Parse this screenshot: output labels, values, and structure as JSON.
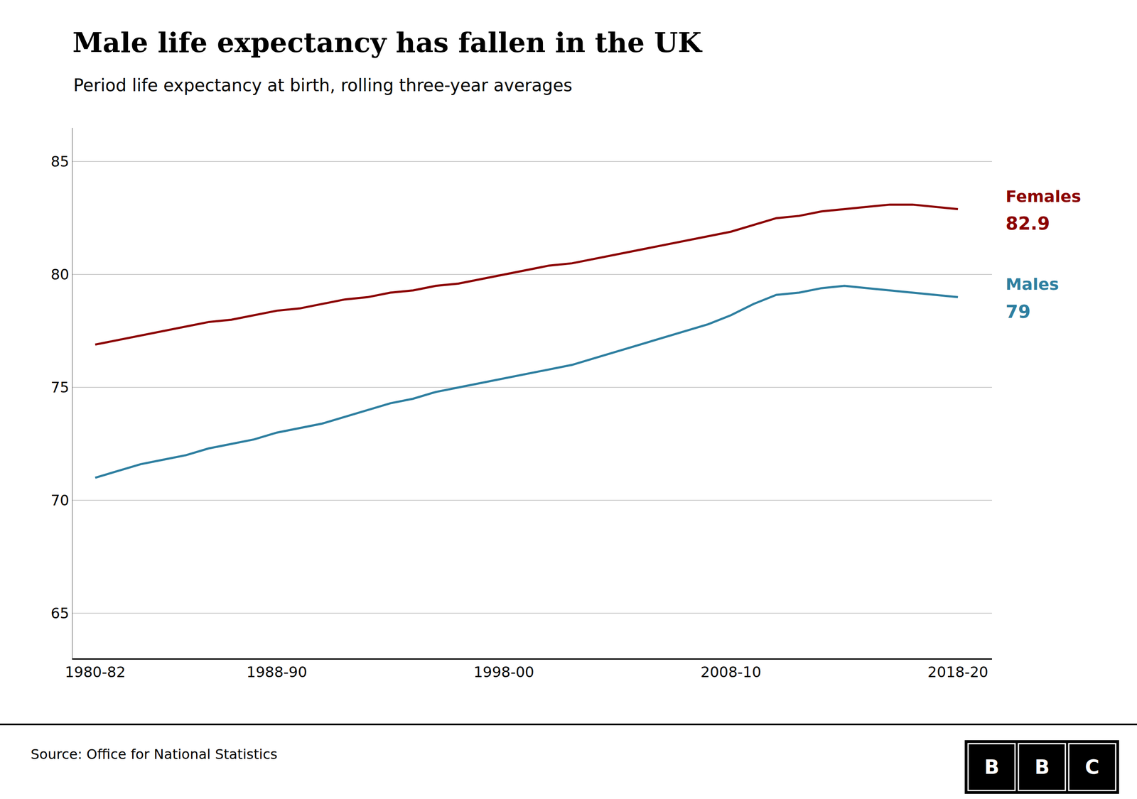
{
  "chart_data": {
    "type": "line",
    "title": "Male life expectancy has fallen in the UK",
    "subtitle": "Period life expectancy at birth, rolling three-year averages",
    "source": "Source: Office for National Statistics",
    "logo": "BBC",
    "x": [
      1981,
      1982,
      1983,
      1984,
      1985,
      1986,
      1987,
      1988,
      1989,
      1990,
      1991,
      1992,
      1993,
      1994,
      1995,
      1996,
      1997,
      1998,
      1999,
      2000,
      2001,
      2002,
      2003,
      2004,
      2005,
      2006,
      2007,
      2008,
      2009,
      2010,
      2011,
      2012,
      2013,
      2014,
      2015,
      2016,
      2017,
      2018,
      2019
    ],
    "series": [
      {
        "name": "Females",
        "color": "#8b0000",
        "values": [
          76.9,
          77.1,
          77.3,
          77.5,
          77.7,
          77.9,
          78.0,
          78.2,
          78.4,
          78.5,
          78.7,
          78.9,
          79.0,
          79.2,
          79.3,
          79.5,
          79.6,
          79.8,
          80.0,
          80.2,
          80.4,
          80.5,
          80.7,
          80.9,
          81.1,
          81.3,
          81.5,
          81.7,
          81.9,
          82.2,
          82.5,
          82.6,
          82.8,
          82.9,
          83.0,
          83.1,
          83.1,
          83.0,
          82.9
        ]
      },
      {
        "name": "Males",
        "color": "#2e7fa0",
        "values": [
          71.0,
          71.3,
          71.6,
          71.8,
          72.0,
          72.3,
          72.5,
          72.7,
          73.0,
          73.2,
          73.4,
          73.7,
          74.0,
          74.3,
          74.5,
          74.8,
          75.0,
          75.2,
          75.4,
          75.6,
          75.8,
          76.0,
          76.3,
          76.6,
          76.9,
          77.2,
          77.5,
          77.8,
          78.2,
          78.7,
          79.1,
          79.2,
          79.4,
          79.5,
          79.4,
          79.3,
          79.2,
          79.1,
          79.0
        ]
      }
    ],
    "xlim": [
      1980,
      2020.5
    ],
    "xticks": [
      {
        "value": 1981,
        "label": "1980-82"
      },
      {
        "value": 1989,
        "label": "1988-90"
      },
      {
        "value": 1999,
        "label": "1998-00"
      },
      {
        "value": 2009,
        "label": "2008-10"
      },
      {
        "value": 2019,
        "label": "2018-20"
      }
    ],
    "ylim": [
      63.0,
      86.5
    ],
    "yticks": [
      65,
      70,
      75,
      80,
      85
    ],
    "grid": true,
    "annotations": [
      {
        "text": "82.9",
        "x": 2019,
        "y": 82.9,
        "color": "#8b0000"
      },
      {
        "text": "79",
        "x": 2019,
        "y": 79.0,
        "color": "#2e7fa0"
      }
    ]
  }
}
